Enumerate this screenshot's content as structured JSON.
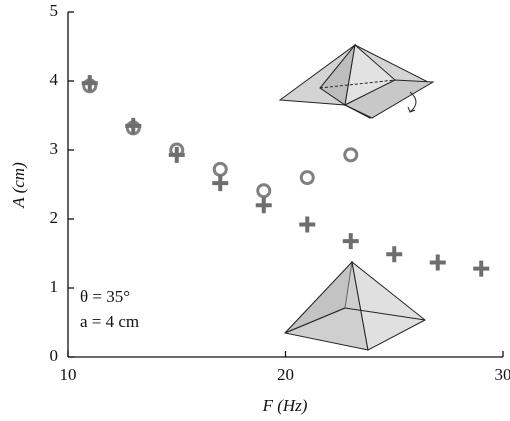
{
  "chart_data": {
    "type": "scatter",
    "x_label": "F (Hz)",
    "y_label": "A (cm)",
    "annotations": [
      "θ = 35°",
      "a = 4 cm"
    ],
    "xlim": [
      10,
      30
    ],
    "xticks": [
      10,
      20,
      30
    ],
    "ylim": [
      0,
      5
    ],
    "yticks": [
      0,
      1,
      2,
      3,
      4,
      5
    ],
    "series": [
      {
        "marker": "circle",
        "color": "#808080",
        "x": [
          11,
          13,
          15,
          17,
          19,
          21,
          23
        ],
        "values": [
          3.93,
          3.32,
          3.0,
          2.72,
          2.41,
          2.6,
          2.93
        ]
      },
      {
        "marker": "plus",
        "color": "#6e6e6e",
        "x": [
          11,
          13,
          15,
          17,
          19,
          21,
          23,
          25,
          27,
          29
        ],
        "values": [
          3.97,
          3.35,
          2.93,
          2.52,
          2.2,
          1.92,
          1.68,
          1.49,
          1.37,
          1.28
        ]
      }
    ]
  }
}
